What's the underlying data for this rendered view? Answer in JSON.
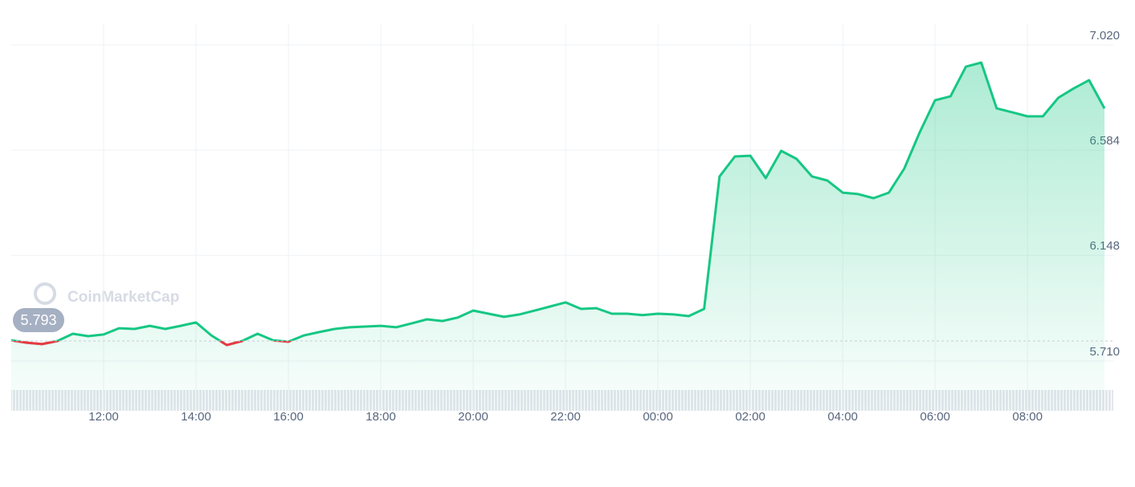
{
  "chart_data": {
    "type": "line",
    "watermark": "CoinMarketCap",
    "reference": {
      "value": 5.793,
      "label": "5.793"
    },
    "x": [
      "10:00",
      "10:20",
      "10:40",
      "11:00",
      "11:20",
      "11:40",
      "12:00",
      "12:20",
      "12:40",
      "13:00",
      "13:20",
      "13:40",
      "14:00",
      "14:20",
      "14:40",
      "15:00",
      "15:20",
      "15:40",
      "16:00",
      "16:20",
      "16:40",
      "17:00",
      "17:20",
      "17:40",
      "18:00",
      "18:20",
      "18:40",
      "19:00",
      "19:20",
      "19:40",
      "20:00",
      "20:20",
      "20:40",
      "21:00",
      "21:20",
      "21:40",
      "22:00",
      "22:20",
      "22:40",
      "23:00",
      "23:20",
      "23:40",
      "00:00",
      "00:20",
      "00:40",
      "01:00",
      "01:20",
      "01:40",
      "02:00",
      "02:20",
      "02:40",
      "03:00",
      "03:20",
      "03:40",
      "04:00",
      "04:20",
      "04:40",
      "05:00",
      "05:20",
      "05:40",
      "06:00",
      "06:20",
      "06:40",
      "07:00",
      "07:20",
      "07:40",
      "08:00",
      "08:20",
      "08:40",
      "09:00",
      "09:20",
      "09:40"
    ],
    "series": [
      {
        "color": "#16c784",
        "below_color": "#ea3943",
        "values": [
          5.796,
          5.786,
          5.78,
          5.793,
          5.823,
          5.813,
          5.82,
          5.846,
          5.843,
          5.856,
          5.843,
          5.856,
          5.87,
          5.816,
          5.776,
          5.793,
          5.823,
          5.796,
          5.79,
          5.816,
          5.83,
          5.843,
          5.85,
          5.853,
          5.856,
          5.85,
          5.866,
          5.883,
          5.876,
          5.89,
          5.919,
          5.906,
          5.893,
          5.903,
          5.919,
          5.936,
          5.953,
          5.926,
          5.929,
          5.906,
          5.906,
          5.9,
          5.906,
          5.903,
          5.896,
          5.926,
          6.475,
          6.558,
          6.561,
          6.468,
          6.581,
          6.548,
          6.475,
          6.458,
          6.408,
          6.402,
          6.385,
          6.408,
          6.508,
          6.658,
          6.791,
          6.807,
          6.93,
          6.947,
          6.757,
          6.741,
          6.724,
          6.724,
          6.801,
          6.84,
          6.874,
          6.757
        ]
      }
    ],
    "xticks": [
      "12:00",
      "14:00",
      "16:00",
      "18:00",
      "20:00",
      "22:00",
      "00:00",
      "02:00",
      "04:00",
      "06:00",
      "08:00"
    ],
    "ylim": [
      5.68,
      7.05
    ],
    "yticks": [
      {
        "value": 5.71,
        "label": "5.710"
      },
      {
        "value": 6.148,
        "label": "6.148"
      },
      {
        "value": 6.584,
        "label": "6.584"
      },
      {
        "value": 7.02,
        "label": "7.020"
      }
    ],
    "grid": true
  }
}
